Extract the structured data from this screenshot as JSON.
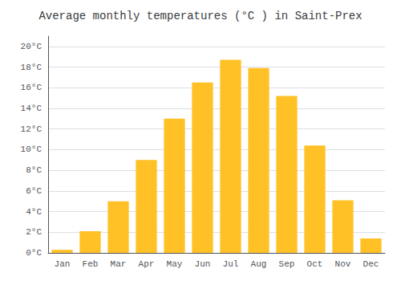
{
  "chart_data": {
    "type": "bar",
    "title": "Average monthly temperatures (°C ) in Saint-Prex",
    "categories": [
      "Jan",
      "Feb",
      "Mar",
      "Apr",
      "May",
      "Jun",
      "Jul",
      "Aug",
      "Sep",
      "Oct",
      "Nov",
      "Dec"
    ],
    "values": [
      0.3,
      2.1,
      5.0,
      9.0,
      13.0,
      16.5,
      18.7,
      17.9,
      15.2,
      10.4,
      5.1,
      1.4
    ],
    "color": "#FFC125",
    "ylim": [
      0,
      21
    ],
    "yticks": [
      {
        "value": 0,
        "label": "0°C"
      },
      {
        "value": 2,
        "label": "2°C"
      },
      {
        "value": 4,
        "label": "4°C"
      },
      {
        "value": 6,
        "label": "6°C"
      },
      {
        "value": 8,
        "label": "8°C"
      },
      {
        "value": 10,
        "label": "10°C"
      },
      {
        "value": 12,
        "label": "12°C"
      },
      {
        "value": 14,
        "label": "14°C"
      },
      {
        "value": 16,
        "label": "16°C"
      },
      {
        "value": 18,
        "label": "18°C"
      },
      {
        "value": 20,
        "label": "20°C"
      }
    ],
    "grid": true
  }
}
